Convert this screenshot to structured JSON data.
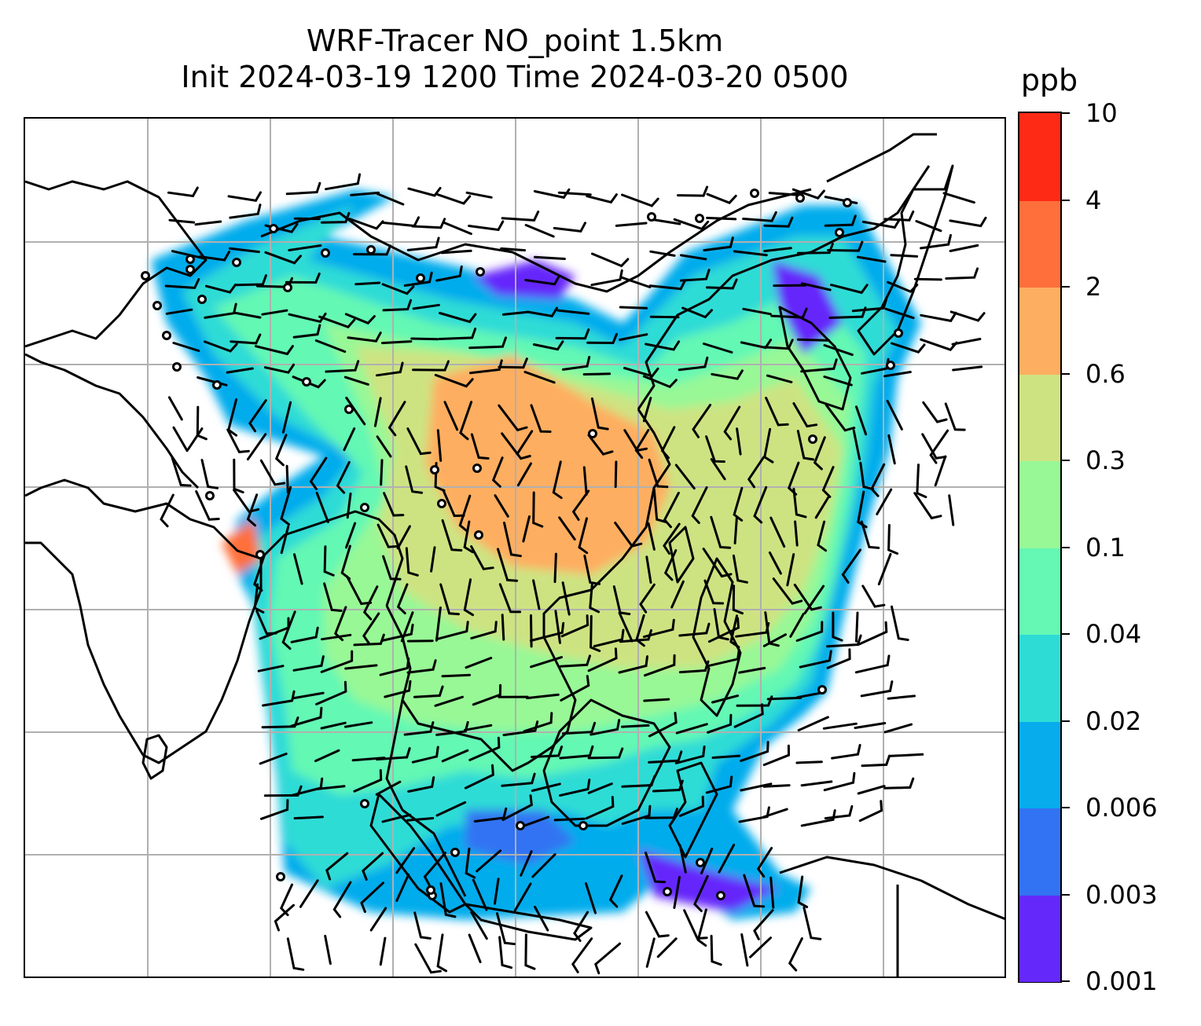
{
  "title_line1": "WRF-Tracer NO_point 1.5km",
  "title_line2": "Init 2024-03-19 1200 Time 2024-03-20 0500",
  "colorbar": {
    "unit": "ppb",
    "levels": [
      "0.001",
      "0.003",
      "0.006",
      "0.02",
      "0.04",
      "0.1",
      "0.3",
      "0.6",
      "2",
      "4",
      "10"
    ],
    "colors": [
      "#6528fb",
      "#3273f3",
      "#06acec",
      "#2edcd6",
      "#64f8b4",
      "#98f896",
      "#cde382",
      "#feae60",
      "#ff6f3b",
      "#ff2a16"
    ]
  },
  "map": {
    "gridlines": "on",
    "gridline_color": "#b0b0b0",
    "coastline_color": "#000000",
    "features": [
      "coastlines",
      "wind-barbs",
      "station-markers",
      "tracer-concentration-field"
    ]
  }
}
